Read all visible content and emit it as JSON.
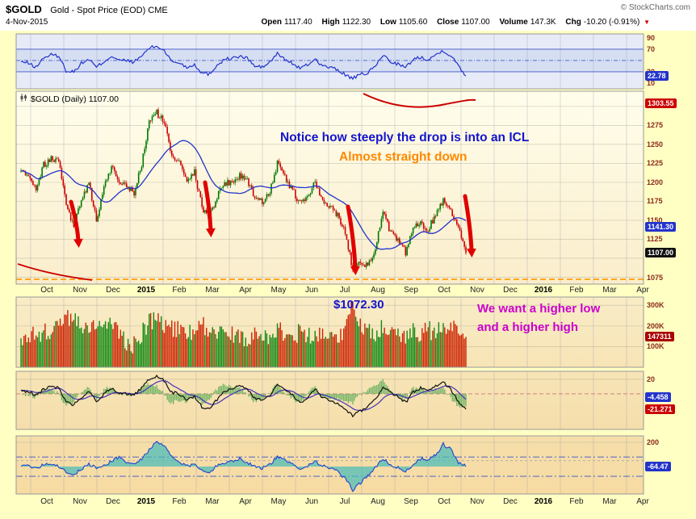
{
  "header": {
    "symbol": "$GOLD",
    "description": "Gold - Spot Price (EOD) CME",
    "credit": "© StockCharts.com",
    "date": "4-Nov-2015",
    "down_icon": "▼",
    "quote": [
      {
        "label": "Open",
        "value": "1117.40"
      },
      {
        "label": "High",
        "value": "1122.30"
      },
      {
        "label": "Low",
        "value": "1105.60"
      },
      {
        "label": "Close",
        "value": "1107.00"
      },
      {
        "label": "Volume",
        "value": "147.3K"
      },
      {
        "label": "Chg",
        "value": "-10.20 (-0.91%)"
      }
    ]
  },
  "series_label": "$GOLD (Daily) 1107.00",
  "annotations": {
    "icl_note": "Notice how steeply the drop is into an ICL",
    "straight_down": "Almost straight down",
    "price_low_label": "$1072.30",
    "higher_low": "We want a higher low",
    "higher_high": "and a higher high"
  },
  "axis_months": [
    "Oct",
    "Nov",
    "Dec",
    "2015",
    "Feb",
    "Mar",
    "Apr",
    "May",
    "Jun",
    "Jul",
    "Aug",
    "Sep",
    "Oct",
    "Nov",
    "Dec",
    "2016",
    "Feb",
    "Mar",
    "Apr"
  ],
  "colors": {
    "candle_up": "#007700",
    "candle_down": "#CC0000",
    "ma_blue": "#2233CC",
    "ma_red": "#CC0000",
    "support_orange": "#FF9900",
    "annotation_blue": "#1414CC",
    "annotation_orange": "#FF8800",
    "annotation_magenta": "#CC00CC"
  },
  "right_axis": {
    "rsi": {
      "ticks": [
        90,
        70,
        30,
        10
      ],
      "box": {
        "text": "22.78",
        "value": 22.78,
        "color": "#2233CC"
      }
    },
    "price": {
      "ticks": [
        1275,
        1250,
        1225,
        1200,
        1175,
        1150,
        1125,
        1075
      ],
      "boxes": [
        {
          "text": "1303.55",
          "value": 1303.55,
          "color": "#CC0000"
        },
        {
          "text": "1141.30",
          "value": 1141.3,
          "color": "#2233CC"
        },
        {
          "text": "1107.00",
          "value": 1107.0,
          "color": "#111111"
        }
      ]
    },
    "volume": {
      "ticks": [
        "300K",
        "200K",
        "100K"
      ],
      "tick_values": [
        300,
        200,
        100
      ],
      "box": {
        "text": "147311",
        "value": 147.311,
        "color": "#AA0000"
      }
    },
    "macd": {
      "ticks": [
        20
      ],
      "boxes": [
        {
          "text": "-4.458",
          "value": -4.458,
          "color": "#2233CC"
        },
        {
          "text": "-21.271",
          "value": -21.271,
          "color": "#CC0000"
        }
      ]
    },
    "osc": {
      "ticks": [
        200
      ],
      "box": {
        "text": "-64.47",
        "value": -64.47,
        "color": "#2233CC"
      }
    }
  },
  "chart_data": [
    {
      "id": "rsi",
      "type": "line",
      "indicator": "momentum-oscillator",
      "ylim": [
        0,
        97
      ],
      "overbought": 70,
      "midline": 50,
      "oversold": 30,
      "last": 22.78,
      "x_span": "Sep 2014 - Nov 2015 (weekly anchor samples)",
      "anchor_values": [
        48,
        45,
        38,
        55,
        60,
        58,
        32,
        30,
        45,
        52,
        38,
        48,
        58,
        50,
        50,
        47,
        58,
        72,
        75,
        68,
        48,
        46,
        38,
        43,
        28,
        26,
        42,
        52,
        54,
        57,
        54,
        40,
        38,
        47,
        62,
        52,
        45,
        36,
        42,
        53,
        40,
        38,
        33,
        25,
        18,
        25,
        28,
        40,
        60,
        48,
        44,
        37,
        52,
        56,
        52,
        60,
        68,
        58,
        42,
        22.78
      ]
    },
    {
      "id": "price",
      "type": "candlestick",
      "ylim": [
        1066,
        1320
      ],
      "last_close": 1107.0,
      "ma_blue_last": 1141.3,
      "ma_red_last": 1303.55,
      "support_line": 1072.3,
      "x_span": "Sep 2014 - Nov 2015 (weekly anchor closes)",
      "anchor_closes": [
        1215,
        1211,
        1192,
        1223,
        1231,
        1229,
        1173,
        1142,
        1178,
        1198,
        1151,
        1192,
        1222,
        1196,
        1195,
        1186,
        1223,
        1280,
        1292,
        1279,
        1234,
        1229,
        1205,
        1213,
        1167,
        1155,
        1182,
        1199,
        1201,
        1208,
        1204,
        1180,
        1174,
        1189,
        1224,
        1206,
        1190,
        1172,
        1181,
        1200,
        1173,
        1168,
        1158,
        1133,
        1085,
        1097,
        1090,
        1113,
        1160,
        1134,
        1122,
        1108,
        1139,
        1146,
        1138,
        1158,
        1177,
        1164,
        1142,
        1107
      ]
    },
    {
      "id": "volume",
      "type": "bar",
      "unit": "K",
      "ylim": [
        0,
        340
      ],
      "last": 147.311,
      "tick_values": [
        300,
        200,
        100
      ],
      "anchor_values": [
        140,
        150,
        160,
        170,
        180,
        190,
        230,
        250,
        200,
        180,
        220,
        190,
        200,
        170,
        120,
        110,
        160,
        220,
        240,
        210,
        190,
        180,
        170,
        160,
        200,
        190,
        160,
        150,
        160,
        150,
        140,
        170,
        160,
        150,
        190,
        160,
        150,
        170,
        150,
        160,
        170,
        150,
        160,
        180,
        300,
        220,
        180,
        170,
        200,
        180,
        160,
        150,
        170,
        160,
        180,
        170,
        190,
        180,
        190,
        147
      ]
    },
    {
      "id": "macd",
      "type": "line",
      "indicator": "macd-with-histogram",
      "ylim": [
        -49,
        31
      ],
      "last_fast": -21.271,
      "last_slow": -4.458,
      "anchor_values": [
        5,
        3,
        -2,
        6,
        10,
        8,
        -12,
        -15,
        -5,
        2,
        -10,
        0,
        8,
        2,
        0,
        -2,
        8,
        20,
        25,
        18,
        2,
        0,
        -8,
        -4,
        -18,
        -20,
        -8,
        4,
        8,
        10,
        7,
        -6,
        -9,
        -2,
        12,
        5,
        -2,
        -12,
        -6,
        6,
        -6,
        -9,
        -14,
        -22,
        -30,
        -24,
        -18,
        -8,
        10,
        2,
        -4,
        -12,
        2,
        8,
        4,
        10,
        16,
        6,
        -10,
        -21.271
      ]
    },
    {
      "id": "osc",
      "type": "area",
      "indicator": "oscillator-with-fill",
      "ylim": [
        -363,
        270
      ],
      "upper_dash": 40,
      "lower_dash": -170,
      "last": -64.47,
      "anchor_values": [
        -60,
        -50,
        -80,
        -40,
        -30,
        -60,
        -120,
        -160,
        -90,
        -40,
        -80,
        -60,
        0,
        40,
        -20,
        -40,
        20,
        120,
        200,
        160,
        40,
        -20,
        -60,
        -40,
        -100,
        -120,
        -60,
        -20,
        0,
        20,
        -20,
        -60,
        -80,
        -40,
        40,
        0,
        -40,
        -80,
        -60,
        0,
        -60,
        -80,
        -120,
        -200,
        -320,
        -240,
        -160,
        -80,
        20,
        -40,
        -80,
        -120,
        -40,
        20,
        0,
        60,
        180,
        120,
        -20,
        -64.47
      ]
    }
  ]
}
